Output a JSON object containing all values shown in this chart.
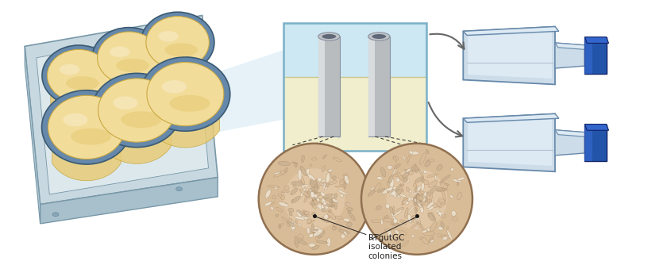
{
  "title": "",
  "label_text": "RTgutGC\nisolated\ncolonies",
  "label_fontsize": 7.5,
  "label_color": "#222222",
  "background_color": "#ffffff",
  "figwidth": 8.4,
  "figheight": 3.34,
  "dpi": 100,
  "plate": {
    "tray_top_color": "#c8d8e0",
    "tray_side_color": "#a8c0cc",
    "tray_edge": "#7898a8",
    "surface_color": "#dce8ec",
    "well_rim_color": "#6688aa",
    "well_rim_dark": "#3a5a72",
    "well_fill": "#f2dc9a",
    "well_side": "#e8cc78",
    "well_shadow": "#dcc070"
  },
  "box": {
    "top_bg": "#cde8f2",
    "bottom_bg": "#f0eecc",
    "edge": "#7ab0c8",
    "liquid_line": "#c8c890",
    "cyl_body": "#b8bcbe",
    "cyl_light": "#d8dcde",
    "cyl_dark": "#8890a0",
    "cyl_top": "#c0c4c8",
    "cyl_inner": "#606878"
  },
  "flask": {
    "body_color": "#ccdce8",
    "body_light": "#ddeaf4",
    "body_edge": "#6688aa",
    "body_dark": "#99aabb",
    "cap_color": "#2255aa",
    "cap_light": "#3366cc",
    "cap_dark": "#1a3d80",
    "cap_edge": "#112266"
  },
  "colony": {
    "bg_color": "#d8bc98",
    "bg_light": "#e8d0b0",
    "outline_color": "#907050",
    "cell_light": "#f0e8d8",
    "cell_mid": "#c8b090",
    "cell_dark": "#a08060"
  },
  "beam_color": "#c8e4f0",
  "arrow_color": "#666666",
  "dash_color": "#333333"
}
